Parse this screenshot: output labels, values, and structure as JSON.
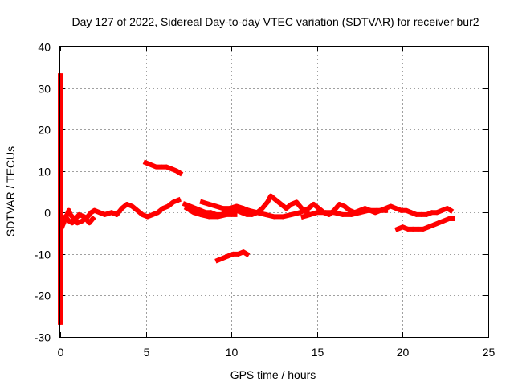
{
  "chart_data": {
    "type": "scatter",
    "title": "Day 127 of 2022, Sidereal Day-to-day VTEC variation (SDTVAR) for receiver bur2",
    "xlabel": "GPS time / hours",
    "ylabel": "SDTVAR / TECUs",
    "xlim": [
      0,
      25
    ],
    "ylim": [
      -30,
      40
    ],
    "xticks": [
      0,
      5,
      10,
      15,
      20,
      25
    ],
    "yticks": [
      -30,
      -20,
      -10,
      0,
      10,
      20,
      30,
      40
    ],
    "grid": true,
    "marker_color": "#ff0000",
    "series": [
      {
        "name": "seg-main-early",
        "points": [
          [
            0.1,
            -3.5
          ],
          [
            0.2,
            -2.5
          ],
          [
            0.3,
            -1.5
          ],
          [
            0.4,
            -0.5
          ],
          [
            0.5,
            0.5
          ],
          [
            0.6,
            -0.5
          ],
          [
            0.8,
            -1.5
          ],
          [
            1.0,
            -2.5
          ],
          [
            1.3,
            -2.0
          ],
          [
            1.6,
            -1.0
          ],
          [
            1.8,
            0.0
          ],
          [
            2.0,
            0.5
          ],
          [
            2.3,
            0.0
          ],
          [
            2.6,
            -0.5
          ],
          [
            3.0,
            0.0
          ],
          [
            3.3,
            -0.5
          ],
          [
            3.6,
            1.0
          ],
          [
            3.9,
            2.0
          ],
          [
            4.2,
            1.5
          ],
          [
            4.5,
            0.5
          ],
          [
            4.8,
            -0.5
          ],
          [
            5.1,
            -1.0
          ],
          [
            5.4,
            -0.5
          ],
          [
            5.7,
            0.0
          ],
          [
            6.0,
            1.0
          ],
          [
            6.3,
            1.5
          ],
          [
            6.6,
            2.5
          ],
          [
            6.9,
            3.0
          ]
        ]
      },
      {
        "name": "seg-low-early",
        "points": [
          [
            0.3,
            -1.0
          ],
          [
            0.5,
            -2.0
          ],
          [
            0.7,
            -2.5
          ],
          [
            0.9,
            -1.5
          ],
          [
            1.1,
            -0.5
          ],
          [
            1.4,
            -1.0
          ],
          [
            1.7,
            -2.5
          ],
          [
            1.9,
            -1.5
          ]
        ]
      },
      {
        "name": "seg-high-5h",
        "points": [
          [
            5.0,
            12.0
          ],
          [
            5.3,
            11.5
          ],
          [
            5.6,
            11.0
          ],
          [
            5.9,
            11.0
          ],
          [
            6.2,
            11.0
          ],
          [
            6.5,
            10.5
          ],
          [
            6.8,
            10.0
          ],
          [
            7.0,
            9.5
          ]
        ]
      },
      {
        "name": "seg-main-mid",
        "points": [
          [
            7.3,
            2.0
          ],
          [
            7.6,
            1.5
          ],
          [
            7.9,
            1.0
          ],
          [
            8.2,
            0.5
          ],
          [
            8.5,
            0.0
          ],
          [
            8.8,
            0.0
          ],
          [
            9.1,
            -0.5
          ],
          [
            9.4,
            -0.5
          ],
          [
            9.7,
            0.0
          ],
          [
            10.0,
            0.0
          ],
          [
            10.3,
            0.5
          ],
          [
            10.6,
            0.0
          ],
          [
            10.9,
            -0.5
          ],
          [
            11.2,
            -0.5
          ],
          [
            11.5,
            0.0
          ],
          [
            11.8,
            1.0
          ],
          [
            12.1,
            2.5
          ],
          [
            12.3,
            4.0
          ],
          [
            12.6,
            3.0
          ],
          [
            12.9,
            2.0
          ],
          [
            13.2,
            1.0
          ],
          [
            13.5,
            2.0
          ],
          [
            13.8,
            2.5
          ],
          [
            14.1,
            1.0
          ],
          [
            14.4,
            0.0
          ]
        ]
      },
      {
        "name": "seg-second-mid",
        "points": [
          [
            8.3,
            2.5
          ],
          [
            8.7,
            2.0
          ],
          [
            9.1,
            1.5
          ],
          [
            9.5,
            1.0
          ],
          [
            9.9,
            1.0
          ],
          [
            10.3,
            1.5
          ],
          [
            10.7,
            1.0
          ],
          [
            11.0,
            0.5
          ]
        ]
      },
      {
        "name": "seg-third-mid",
        "points": [
          [
            7.4,
            1.0
          ],
          [
            7.8,
            0.0
          ],
          [
            8.2,
            -0.5
          ],
          [
            8.7,
            -1.0
          ],
          [
            9.2,
            -1.0
          ],
          [
            9.7,
            -0.5
          ],
          [
            10.2,
            -0.5
          ]
        ]
      },
      {
        "name": "seg-low-10h",
        "points": [
          [
            9.2,
            -11.5
          ],
          [
            9.5,
            -11.0
          ],
          [
            9.8,
            -10.5
          ],
          [
            10.1,
            -10.0
          ],
          [
            10.4,
            -10.0
          ],
          [
            10.7,
            -9.5
          ],
          [
            10.9,
            -10.0
          ]
        ]
      },
      {
        "name": "seg-main-late",
        "points": [
          [
            11.0,
            0.5
          ],
          [
            11.5,
            0.0
          ],
          [
            12.0,
            -0.5
          ],
          [
            12.5,
            -1.0
          ],
          [
            13.0,
            -1.0
          ],
          [
            13.5,
            -0.5
          ],
          [
            14.0,
            0.0
          ],
          [
            14.5,
            1.0
          ],
          [
            14.8,
            2.0
          ],
          [
            15.1,
            1.0
          ],
          [
            15.4,
            0.0
          ],
          [
            15.7,
            -0.5
          ],
          [
            16.0,
            0.5
          ],
          [
            16.3,
            2.0
          ],
          [
            16.6,
            1.5
          ],
          [
            16.9,
            0.5
          ],
          [
            17.2,
            0.0
          ],
          [
            17.5,
            0.5
          ],
          [
            17.8,
            1.0
          ],
          [
            18.1,
            0.5
          ],
          [
            18.4,
            0.0
          ],
          [
            18.7,
            0.5
          ],
          [
            19.0,
            1.0
          ],
          [
            19.3,
            1.5
          ],
          [
            19.6,
            1.0
          ],
          [
            19.9,
            0.5
          ],
          [
            20.2,
            0.5
          ],
          [
            20.5,
            0.0
          ],
          [
            20.8,
            -0.5
          ],
          [
            21.1,
            -0.5
          ],
          [
            21.4,
            -0.5
          ],
          [
            21.7,
            0.0
          ],
          [
            22.0,
            0.0
          ],
          [
            22.3,
            0.5
          ],
          [
            22.6,
            1.0
          ],
          [
            22.8,
            0.5
          ]
        ]
      },
      {
        "name": "seg-second-late",
        "points": [
          [
            14.2,
            -1.0
          ],
          [
            14.6,
            -0.5
          ],
          [
            15.0,
            0.0
          ],
          [
            15.5,
            0.0
          ],
          [
            16.0,
            0.0
          ],
          [
            16.5,
            -0.5
          ],
          [
            17.0,
            -0.5
          ],
          [
            17.5,
            0.0
          ],
          [
            18.0,
            0.5
          ],
          [
            18.5,
            0.5
          ],
          [
            19.0,
            0.5
          ]
        ]
      },
      {
        "name": "seg-low-20h",
        "points": [
          [
            19.7,
            -4.0
          ],
          [
            20.0,
            -3.5
          ],
          [
            20.3,
            -4.0
          ],
          [
            20.6,
            -4.0
          ],
          [
            20.9,
            -4.0
          ],
          [
            21.2,
            -4.0
          ],
          [
            21.5,
            -3.5
          ],
          [
            21.8,
            -3.0
          ],
          [
            22.1,
            -2.5
          ],
          [
            22.4,
            -2.0
          ],
          [
            22.7,
            -1.5
          ],
          [
            22.9,
            -1.5
          ]
        ]
      },
      {
        "name": "outliers",
        "points": [
          [
            0.0,
            33.0
          ],
          [
            0.0,
            -16.0
          ],
          [
            0.0,
            -26.5
          ]
        ]
      }
    ]
  }
}
